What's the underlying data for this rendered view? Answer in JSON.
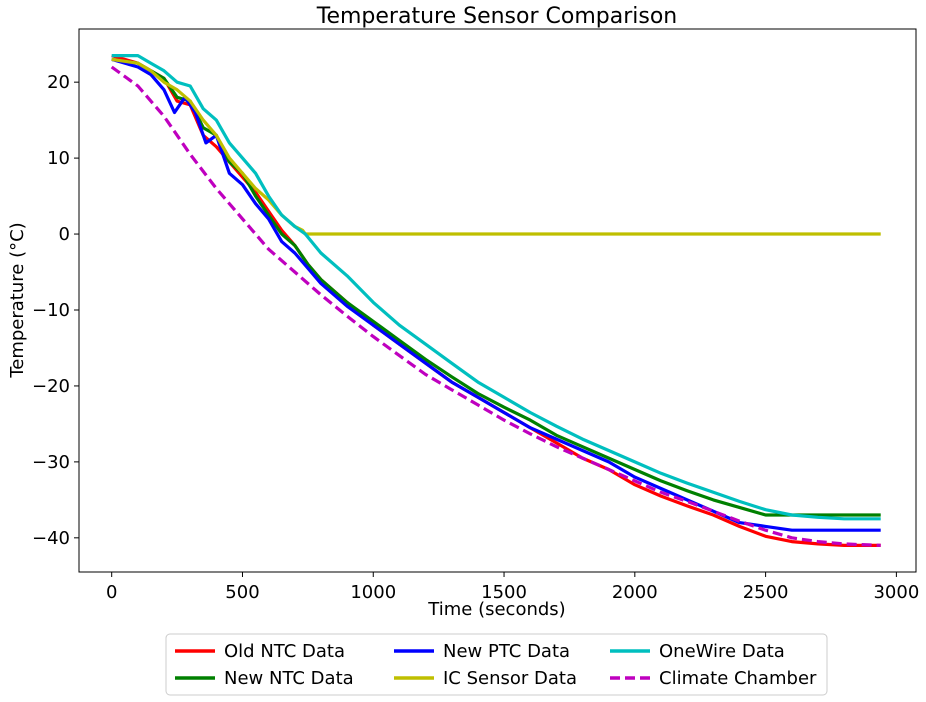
{
  "chart_data": {
    "type": "line",
    "title": "Temperature Sensor Comparison",
    "xlabel": "Time (seconds)",
    "ylabel": "Temperature (°C)",
    "xlim": [
      -125,
      3075
    ],
    "ylim": [
      -44.5,
      27
    ],
    "xticks": [
      0,
      500,
      1000,
      1500,
      2000,
      2500,
      3000
    ],
    "yticks": [
      -40,
      -30,
      -20,
      -10,
      0,
      10,
      20
    ],
    "grid": false,
    "legend_position": "bottom-center, below axes, 3 columns",
    "series": [
      {
        "name": "Old NTC Data",
        "color": "#ff0000",
        "dash": false,
        "x": [
          0,
          100,
          200,
          250,
          300,
          350,
          400,
          450,
          500,
          550,
          600,
          650,
          700,
          750,
          800,
          900,
          1000,
          1100,
          1200,
          1300,
          1400,
          1500,
          1600,
          1700,
          1800,
          1900,
          2000,
          2100,
          2200,
          2300,
          2400,
          2500,
          2600,
          2700,
          2800,
          2940
        ],
        "y": [
          23.5,
          22.5,
          20.5,
          17.5,
          17.0,
          13.0,
          11.5,
          9.5,
          7.5,
          5.5,
          3.0,
          0.5,
          -1.5,
          -4.0,
          -6.0,
          -9.0,
          -12.0,
          -14.5,
          -17.0,
          -19.5,
          -21.5,
          -23.5,
          -25.5,
          -27.5,
          -29.5,
          -31.0,
          -33.0,
          -34.5,
          -35.8,
          -37.0,
          -38.5,
          -39.8,
          -40.5,
          -40.8,
          -41.0,
          -41.0
        ]
      },
      {
        "name": "New NTC Data",
        "color": "#008000",
        "dash": false,
        "x": [
          0,
          100,
          200,
          250,
          300,
          350,
          400,
          450,
          500,
          550,
          600,
          650,
          700,
          750,
          800,
          900,
          1000,
          1100,
          1200,
          1300,
          1400,
          1500,
          1600,
          1700,
          1800,
          1900,
          2000,
          2100,
          2200,
          2300,
          2400,
          2500,
          2600,
          2700,
          2800,
          2940
        ],
        "y": [
          23.0,
          22.5,
          20.5,
          18.0,
          17.5,
          14.0,
          13.0,
          9.5,
          8.0,
          5.0,
          2.5,
          0.0,
          -1.5,
          -4.0,
          -6.0,
          -9.0,
          -11.5,
          -14.0,
          -16.5,
          -18.8,
          -21.0,
          -22.8,
          -24.5,
          -26.5,
          -28.0,
          -29.5,
          -31.0,
          -32.5,
          -33.8,
          -35.0,
          -36.0,
          -37.0,
          -37.0,
          -37.0,
          -37.0,
          -37.0
        ]
      },
      {
        "name": "New PTC Data",
        "color": "#0000ff",
        "dash": false,
        "x": [
          0,
          100,
          150,
          200,
          240,
          280,
          320,
          360,
          400,
          450,
          500,
          550,
          600,
          650,
          700,
          750,
          800,
          900,
          1000,
          1100,
          1200,
          1300,
          1400,
          1500,
          1600,
          1700,
          1800,
          1900,
          2000,
          2100,
          2200,
          2300,
          2400,
          2500,
          2600,
          2700,
          2800,
          2940
        ],
        "y": [
          23.0,
          22.0,
          21.0,
          19.0,
          16.0,
          18.0,
          16.0,
          12.0,
          13.0,
          8.0,
          6.5,
          4.0,
          2.0,
          -1.0,
          -2.5,
          -4.5,
          -6.5,
          -9.5,
          -12.0,
          -14.5,
          -17.0,
          -19.5,
          -21.5,
          -23.5,
          -25.5,
          -27.0,
          -28.5,
          -30.0,
          -32.0,
          -33.5,
          -35.0,
          -36.5,
          -38.0,
          -38.5,
          -39.0,
          -39.0,
          -39.0,
          -39.0
        ]
      },
      {
        "name": "IC Sensor Data",
        "color": "#bfbf00",
        "dash": false,
        "x": [
          0,
          100,
          150,
          200,
          250,
          300,
          350,
          400,
          450,
          500,
          550,
          600,
          650,
          700,
          730,
          740,
          2940
        ],
        "y": [
          23.0,
          22.5,
          21.5,
          20.0,
          19.0,
          17.5,
          15.0,
          13.0,
          10.0,
          8.0,
          6.0,
          4.5,
          2.5,
          1.0,
          0.5,
          0.0,
          0.0
        ]
      },
      {
        "name": "OneWire Data",
        "color": "#00bfbf",
        "dash": false,
        "x": [
          0,
          100,
          150,
          200,
          250,
          300,
          350,
          400,
          450,
          500,
          550,
          600,
          650,
          700,
          740,
          800,
          900,
          1000,
          1100,
          1200,
          1300,
          1400,
          1500,
          1600,
          1700,
          1800,
          1900,
          2000,
          2100,
          2200,
          2300,
          2400,
          2500,
          2600,
          2700,
          2800,
          2940
        ],
        "y": [
          23.5,
          23.5,
          22.5,
          21.5,
          20.0,
          19.5,
          16.5,
          15.0,
          12.0,
          10.0,
          8.0,
          5.0,
          2.5,
          1.0,
          0.0,
          -2.5,
          -5.5,
          -9.0,
          -12.0,
          -14.5,
          -17.0,
          -19.5,
          -21.5,
          -23.5,
          -25.3,
          -27.0,
          -28.5,
          -30.0,
          -31.5,
          -32.8,
          -34.0,
          -35.2,
          -36.3,
          -37.0,
          -37.3,
          -37.5,
          -37.5
        ]
      },
      {
        "name": "Climate Chamber",
        "color": "#bf00bf",
        "dash": true,
        "x": [
          0,
          100,
          200,
          300,
          400,
          500,
          600,
          700,
          800,
          900,
          1000,
          1100,
          1200,
          1300,
          1400,
          1500,
          1600,
          1700,
          1800,
          1900,
          2000,
          2100,
          2200,
          2300,
          2400,
          2500,
          2600,
          2700,
          2800,
          2940
        ],
        "y": [
          22.0,
          19.5,
          15.5,
          10.5,
          6.0,
          2.0,
          -2.0,
          -5.0,
          -8.0,
          -10.8,
          -13.5,
          -16.0,
          -18.5,
          -20.5,
          -22.5,
          -24.5,
          -26.3,
          -28.0,
          -29.5,
          -31.0,
          -32.5,
          -34.0,
          -35.2,
          -36.5,
          -37.8,
          -39.0,
          -40.0,
          -40.5,
          -40.8,
          -41.0
        ]
      }
    ]
  }
}
